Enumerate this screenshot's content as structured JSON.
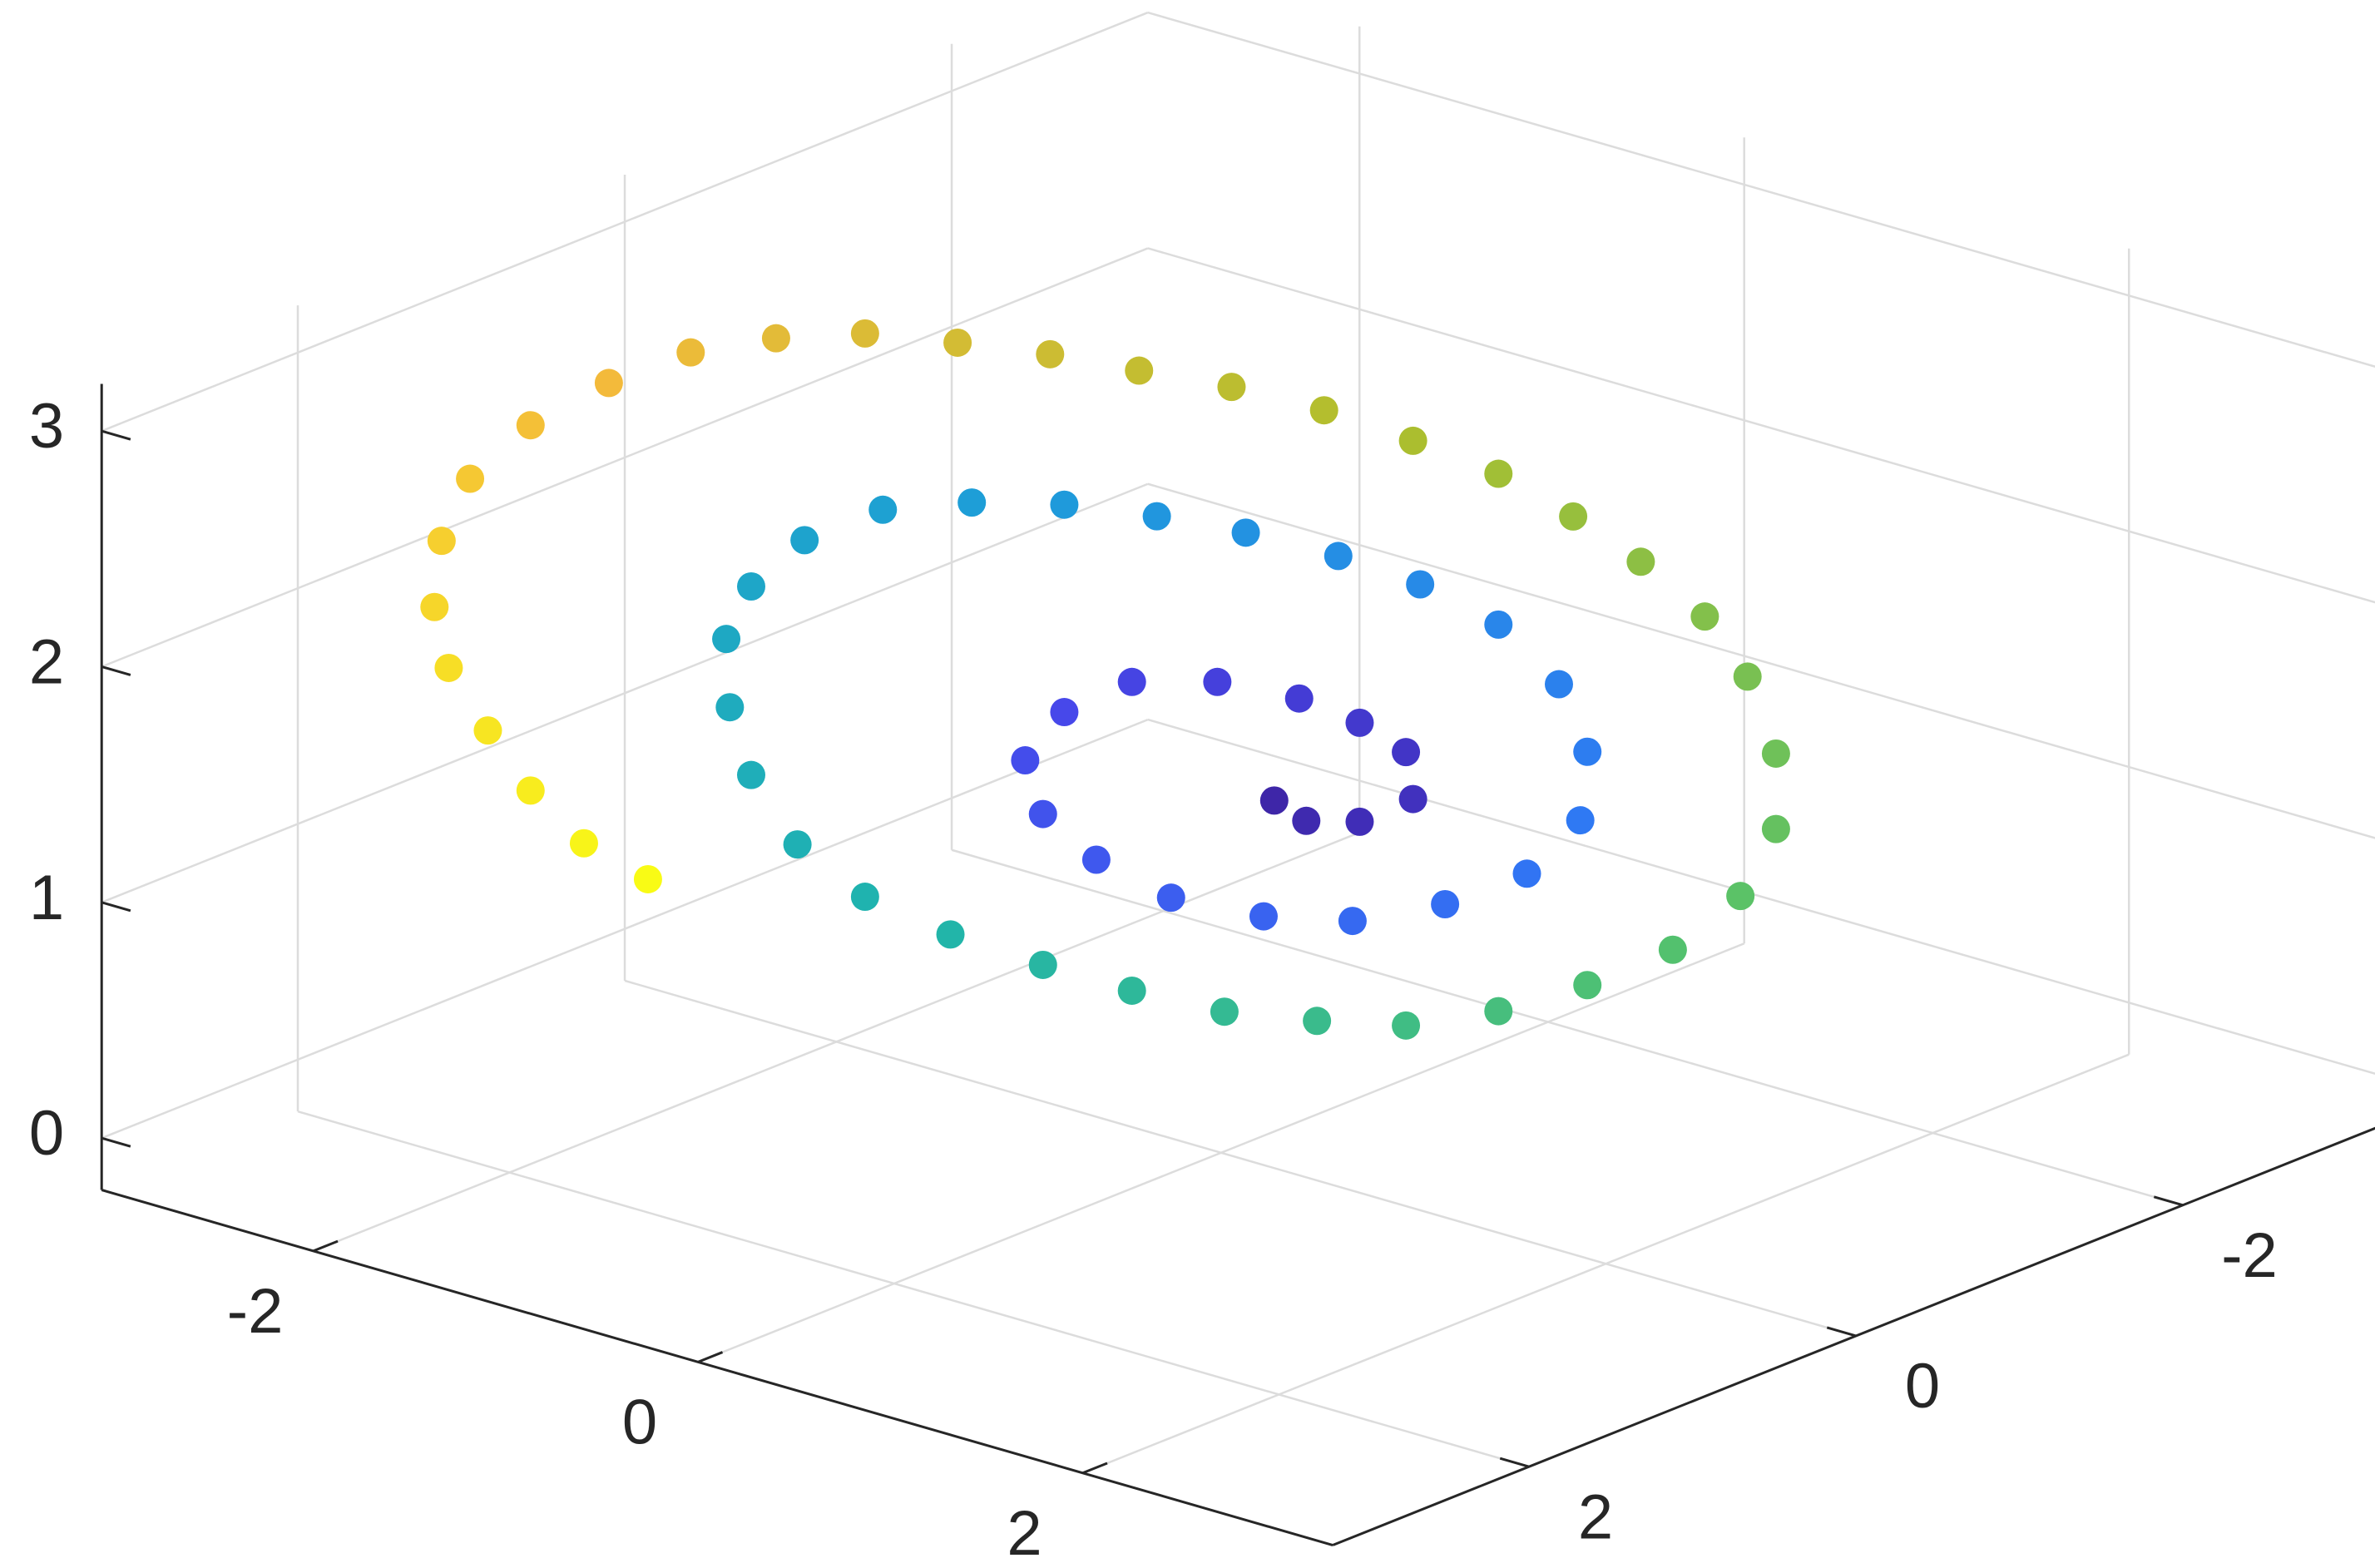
{
  "chart_data": {
    "type": "scatter3",
    "x": [
      -0.31,
      -0.22,
      -0.07,
      0.08,
      0.06,
      -0.07,
      -0.24,
      -0.47,
      -0.71,
      -0.9,
      -1.01,
      -0.96,
      -0.81,
      -0.6,
      -0.34,
      -0.09,
      0.17,
      0.4,
      0.55,
      0.57,
      0.49,
      0.32,
      0.1,
      -0.13,
      -0.39,
      -0.64,
      -0.9,
      -1.16,
      -1.41,
      -1.63,
      -1.78,
      -1.85,
      -1.84,
      -1.78,
      -1.65,
      -1.46,
      -1.22,
      -0.96,
      -0.71,
      -0.45,
      -0.19,
      0.06,
      0.32,
      0.57,
      0.81,
      1.0,
      1.1,
      1.1,
      1.02,
      0.9,
      0.72,
      0.53,
      0.32,
      0.08,
      -0.17,
      -0.43,
      -0.69,
      -0.94,
      -1.2,
      -1.46,
      -1.71,
      -1.95,
      -2.18,
      -2.4,
      -2.57,
      -2.65,
      -2.67,
      -2.63,
      -2.52,
      -2.4,
      -2.25,
      -2.07
    ],
    "y": [
      -0.69,
      -0.78,
      -0.93,
      -1.08,
      -1.06,
      -0.93,
      -0.76,
      -0.53,
      -0.29,
      -0.1,
      0.01,
      -0.04,
      -0.19,
      -0.4,
      -0.66,
      -0.91,
      -1.17,
      -1.4,
      -1.55,
      -1.57,
      -1.49,
      -1.32,
      -1.1,
      -0.87,
      -0.61,
      -0.36,
      -0.1,
      0.16,
      0.41,
      0.63,
      0.78,
      0.85,
      0.84,
      0.78,
      0.65,
      0.46,
      0.22,
      -0.04,
      -0.29,
      -0.55,
      -0.81,
      -1.06,
      -1.32,
      -1.57,
      -1.81,
      -2.0,
      -2.1,
      -2.1,
      -2.02,
      -1.9,
      -1.72,
      -1.53,
      -1.32,
      -1.08,
      -0.83,
      -0.57,
      -0.31,
      -0.06,
      0.2,
      0.46,
      0.71,
      0.95,
      1.18,
      1.4,
      1.57,
      1.65,
      1.67,
      1.63,
      1.52,
      1.4,
      1.25,
      1.07
    ],
    "z": [
      1.01,
      0.92,
      0.91,
      1.0,
      1.2,
      1.33,
      1.44,
      1.52,
      1.53,
      1.41,
      1.21,
      0.98,
      0.78,
      0.61,
      0.52,
      0.49,
      0.55,
      0.67,
      0.89,
      1.18,
      1.47,
      1.73,
      1.91,
      2.04,
      2.15,
      2.23,
      2.29,
      2.31,
      2.29,
      2.17,
      1.98,
      1.76,
      1.47,
      1.18,
      0.88,
      0.65,
      0.48,
      0.34,
      0.22,
      0.12,
      0.07,
      0.04,
      0.09,
      0.19,
      0.33,
      0.55,
      0.83,
      1.15,
      1.48,
      1.74,
      1.98,
      2.18,
      2.37,
      2.52,
      2.66,
      2.77,
      2.85,
      2.93,
      2.99,
      3.04,
      3.03,
      2.98,
      2.86,
      2.69,
      2.47,
      2.21,
      1.93,
      1.67,
      1.4,
      1.14,
      0.91,
      0.75
    ],
    "colormap": [
      "#3e26a8",
      "#4747ea",
      "#2f78f4",
      "#1e9dd9",
      "#1fb4ad",
      "#55c26b",
      "#aebe2d",
      "#f4ba3b",
      "#f9fb15"
    ],
    "xlim": [
      -3.1,
      3.3
    ],
    "ylim": [
      -3.2,
      3.2
    ],
    "zlim": [
      -0.22,
      3.2
    ],
    "xticks": [
      -2,
      0,
      2
    ],
    "yticks": [
      -2,
      0,
      2
    ],
    "zticks": [
      0,
      1,
      2,
      3
    ],
    "grid": true
  }
}
